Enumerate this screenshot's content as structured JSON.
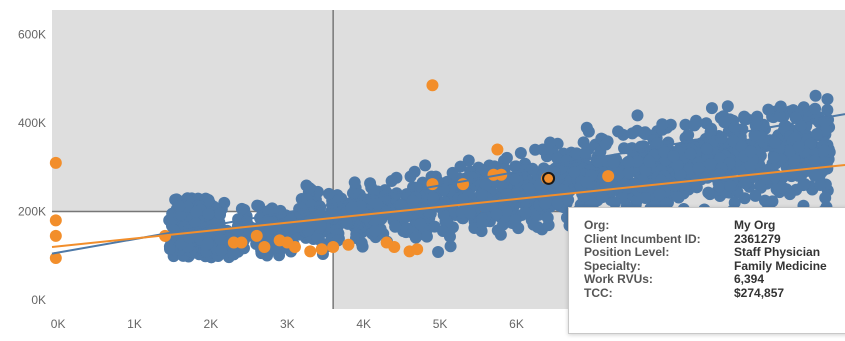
{
  "chart_data": {
    "type": "scatter",
    "title": "",
    "xlabel": "",
    "ylabel": "",
    "x_ticks": [
      "0K",
      "1K",
      "2K",
      "3K",
      "4K",
      "5K",
      "6K"
    ],
    "y_ticks": [
      "600K",
      "400K",
      "200K",
      "0K"
    ],
    "xlim": [
      -80,
      10300
    ],
    "ylim": [
      -20000,
      655000
    ],
    "reference_lines": {
      "x": 3600,
      "y": 200000
    },
    "colors": {
      "market": "#4e79a7",
      "client": "#f28e2b",
      "quadrant_shade": "#dedede",
      "reference_line": "#777777"
    },
    "series": [
      {
        "key": "market",
        "color": "#4e79a7",
        "cloud_note": "dense band; values sampled",
        "trend": [
          [
            -80,
            105000
          ],
          [
            10300,
            420000
          ]
        ]
      },
      {
        "key": "client",
        "color": "#f28e2b",
        "points": [
          [
            -30,
            310000
          ],
          [
            -30,
            180000
          ],
          [
            -30,
            145000
          ],
          [
            -30,
            95000
          ],
          [
            1400,
            145000
          ],
          [
            2300,
            130000
          ],
          [
            2400,
            130000
          ],
          [
            2600,
            145000
          ],
          [
            2700,
            120000
          ],
          [
            2900,
            135000
          ],
          [
            3000,
            130000
          ],
          [
            3100,
            120000
          ],
          [
            3300,
            110000
          ],
          [
            3450,
            115000
          ],
          [
            3600,
            120000
          ],
          [
            3800,
            125000
          ],
          [
            4300,
            130000
          ],
          [
            4400,
            120000
          ],
          [
            4600,
            110000
          ],
          [
            4700,
            115000
          ],
          [
            4900,
            485000
          ],
          [
            4900,
            262000
          ],
          [
            5300,
            262000
          ],
          [
            5700,
            283000
          ],
          [
            5800,
            283000
          ],
          [
            5750,
            340000
          ],
          [
            6400,
            275000
          ],
          [
            7200,
            280000
          ]
        ],
        "trend": [
          [
            -80,
            120000
          ],
          [
            10300,
            305000
          ]
        ]
      }
    ],
    "highlight": [
      6420,
      274857
    ]
  },
  "tooltip": {
    "rows": [
      {
        "key": "Org:",
        "value": "My Org"
      },
      {
        "key": "Client Incumbent ID:",
        "value": "2361279"
      },
      {
        "key": "Position Level:",
        "value": "Staff Physician"
      },
      {
        "key": "Specialty:",
        "value": "Family Medicine"
      },
      {
        "key": "Work RVUs:",
        "value": "6,394"
      },
      {
        "key": "TCC:",
        "value": "$274,857"
      }
    ]
  }
}
